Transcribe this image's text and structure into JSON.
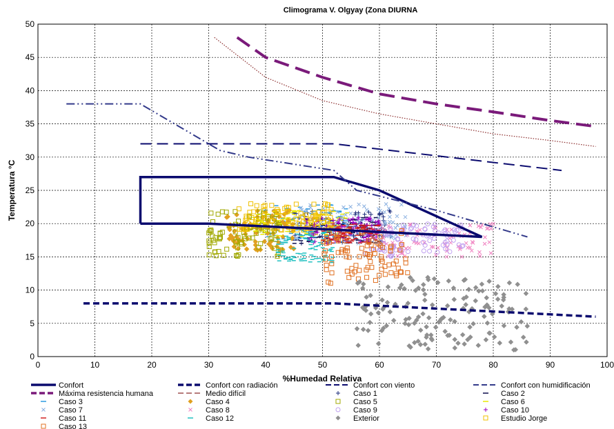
{
  "chart_data": {
    "type": "line",
    "title": "Climograma V. Olgyay (Zona DIURNA",
    "xlabel": "%Humedad Relativa",
    "ylabel": "Temperatura °C",
    "xlim": [
      0,
      100
    ],
    "ylim": [
      0,
      50
    ],
    "xticks": [
      0,
      10,
      20,
      30,
      40,
      50,
      60,
      70,
      80,
      90,
      100
    ],
    "yticks": [
      0,
      5,
      10,
      15,
      20,
      25,
      30,
      35,
      40,
      45,
      50
    ],
    "grid": true,
    "legend_position": "bottom",
    "lines": [
      {
        "name": "Confort",
        "color": "#0a0a6e",
        "dash": "",
        "width": 3.5,
        "points": [
          [
            18,
            20
          ],
          [
            18,
            27
          ],
          [
            52,
            27
          ],
          [
            60,
            25
          ],
          [
            78,
            18
          ],
          [
            30,
            20
          ],
          [
            18,
            20
          ]
        ]
      },
      {
        "name": "Confort con radiación",
        "color": "#0a0a6e",
        "dash": "9,5",
        "width": 3.5,
        "points": [
          [
            8,
            8
          ],
          [
            52,
            8
          ],
          [
            98,
            6
          ]
        ]
      },
      {
        "name": "Confort con viento",
        "color": "#0a0a6e",
        "dash": "16,8",
        "width": 2,
        "points": [
          [
            18,
            32
          ],
          [
            52,
            32
          ],
          [
            92,
            28
          ]
        ]
      },
      {
        "name": "Confort con humidificación",
        "color": "#333a8a",
        "dash": "12,4,2,4,2,4",
        "width": 2,
        "points": [
          [
            5,
            38
          ],
          [
            18,
            38
          ],
          [
            32,
            31
          ],
          [
            37,
            30
          ],
          [
            52,
            28
          ],
          [
            56,
            25
          ],
          [
            70,
            22
          ],
          [
            86,
            18
          ]
        ]
      },
      {
        "name": "Máxima resistencia humana",
        "color": "#7a1a7a",
        "dash": "22,10",
        "width": 4,
        "points": [
          [
            35,
            48
          ],
          [
            40,
            45
          ],
          [
            50,
            42
          ],
          [
            60,
            39.5
          ],
          [
            70,
            38
          ],
          [
            80,
            36.8
          ],
          [
            90,
            35.5
          ],
          [
            98,
            34.6
          ]
        ]
      },
      {
        "name": "Medio difícil",
        "color": "#8a2a2a",
        "dash": "1.5,2",
        "width": 1.2,
        "points": [
          [
            31,
            48
          ],
          [
            40,
            42
          ],
          [
            50,
            38.5
          ],
          [
            60,
            36.5
          ],
          [
            70,
            35
          ],
          [
            80,
            33.5
          ],
          [
            90,
            32.5
          ],
          [
            98,
            31.6
          ]
        ]
      }
    ],
    "scatter_series": [
      {
        "name": "Caso 1",
        "marker": "+",
        "color": "#1a2a7a",
        "x_range": [
          45,
          62
        ],
        "y_range": [
          17,
          22
        ]
      },
      {
        "name": "Caso 2",
        "marker": "-",
        "color": "#0a0a4a",
        "x_range": [
          45,
          60
        ],
        "y_range": [
          17,
          21
        ]
      },
      {
        "name": "Caso 3",
        "marker": "-",
        "color": "#2a9ae0",
        "x_range": [
          40,
          55
        ],
        "y_range": [
          17,
          23
        ]
      },
      {
        "name": "Caso 4",
        "marker": "diamond",
        "color": "#e0a020",
        "x_range": [
          33,
          45
        ],
        "y_range": [
          16,
          22
        ]
      },
      {
        "name": "Caso 5",
        "marker": "square",
        "color": "#a0a800",
        "x_range": [
          30,
          43
        ],
        "y_range": [
          15,
          22
        ]
      },
      {
        "name": "Caso 6",
        "marker": "-",
        "color": "#e8e800",
        "x_range": [
          38,
          55
        ],
        "y_range": [
          18,
          22
        ]
      },
      {
        "name": "Caso 7",
        "marker": "x",
        "color": "#8ab0e0",
        "x_range": [
          45,
          65
        ],
        "y_range": [
          17,
          23
        ]
      },
      {
        "name": "Caso 8",
        "marker": "x",
        "color": "#f080c0",
        "x_range": [
          60,
          80
        ],
        "y_range": [
          15,
          20
        ]
      },
      {
        "name": "Caso 9",
        "marker": "circle",
        "color": "#c0a0f0",
        "x_range": [
          57,
          75
        ],
        "y_range": [
          15,
          20
        ]
      },
      {
        "name": "Caso 10",
        "marker": "+",
        "color": "#9a00c0",
        "x_range": [
          47,
          60
        ],
        "y_range": [
          17,
          21
        ]
      },
      {
        "name": "Caso 11",
        "marker": "-",
        "color": "#d02020",
        "x_range": [
          50,
          60
        ],
        "y_range": [
          17,
          20
        ]
      },
      {
        "name": "Caso 12",
        "marker": "-",
        "color": "#20c0c0",
        "x_range": [
          42,
          52
        ],
        "y_range": [
          14,
          19
        ]
      },
      {
        "name": "Caso 13",
        "marker": "square",
        "color": "#e07020",
        "x_range": [
          50,
          65
        ],
        "y_range": [
          11,
          19
        ]
      },
      {
        "name": "Exterior",
        "marker": "diamond",
        "color": "#909090",
        "x_range": [
          56,
          86
        ],
        "y_range": [
          1,
          12
        ]
      },
      {
        "name": "Estudio Jorge",
        "marker": "square",
        "color": "#f0c000",
        "x_range": [
          35,
          52
        ],
        "y_range": [
          19,
          23
        ]
      }
    ],
    "legend": [
      [
        "Confort",
        "Confort con radiación",
        "Confort con viento",
        "Confort con humidificación"
      ],
      [
        "Máxima resistencia humana",
        "Medio difícil",
        "Caso 1",
        "Caso 2"
      ],
      [
        "Caso 3",
        "Caso 4",
        "Caso 5",
        "Caso 6"
      ],
      [
        "Caso 7",
        "Caso 8",
        "Caso 9",
        "Caso 10"
      ],
      [
        "Caso 11",
        "Caso 12",
        "Exterior",
        "Estudio Jorge"
      ],
      [
        "Caso 13"
      ]
    ]
  }
}
